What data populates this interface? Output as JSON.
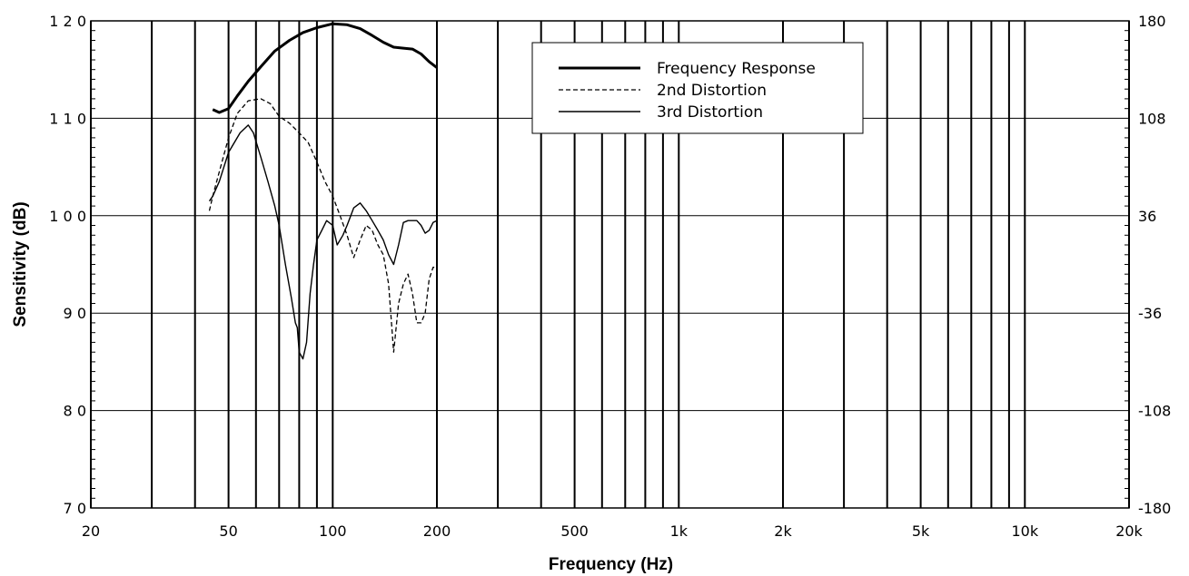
{
  "chart_data": {
    "type": "line",
    "title": "",
    "xlabel": "Frequency (Hz)",
    "ylabel": "Sensitivity (dB)",
    "x_scale": "log",
    "xlim": [
      20,
      20000
    ],
    "ylim": [
      70,
      120
    ],
    "y2lim": [
      -180,
      180
    ],
    "grid": true,
    "legend_position": "top-center",
    "x_tick_labels": [
      {
        "value": 20,
        "label": "20"
      },
      {
        "value": 50,
        "label": "50"
      },
      {
        "value": 100,
        "label": "100"
      },
      {
        "value": 200,
        "label": "200"
      },
      {
        "value": 500,
        "label": "500"
      },
      {
        "value": 1000,
        "label": "1k"
      },
      {
        "value": 2000,
        "label": "2k"
      },
      {
        "value": 5000,
        "label": "5k"
      },
      {
        "value": 10000,
        "label": "10k"
      },
      {
        "value": 20000,
        "label": "20k"
      }
    ],
    "x_grid_values": [
      20,
      30,
      40,
      50,
      60,
      70,
      80,
      90,
      100,
      200,
      300,
      400,
      500,
      600,
      700,
      800,
      900,
      1000,
      2000,
      3000,
      4000,
      5000,
      6000,
      7000,
      8000,
      9000,
      10000,
      20000
    ],
    "y_tick_labels": [
      {
        "value": 70,
        "label": "7 0"
      },
      {
        "value": 80,
        "label": "8 0"
      },
      {
        "value": 90,
        "label": "9 0"
      },
      {
        "value": 100,
        "label": "1 0 0"
      },
      {
        "value": 110,
        "label": "1 1 0"
      },
      {
        "value": 120,
        "label": "1 2 0"
      }
    ],
    "y2_tick_labels": [
      {
        "value": -180,
        "label": "-180"
      },
      {
        "value": -108,
        "label": "-108"
      },
      {
        "value": -36,
        "label": "-36"
      },
      {
        "value": 36,
        "label": "36"
      },
      {
        "value": 108,
        "label": "108"
      },
      {
        "value": 180,
        "label": "180"
      }
    ],
    "series": [
      {
        "name": "Frequency Response",
        "style": "thick-solid",
        "color": "#000000",
        "x": [
          45,
          47,
          50,
          53,
          57,
          62,
          68,
          75,
          82,
          90,
          100,
          110,
          120,
          130,
          140,
          150,
          160,
          170,
          180,
          190,
          200
        ],
        "y": [
          110.9,
          110.6,
          111.0,
          112.3,
          113.8,
          115.3,
          116.9,
          118.0,
          118.8,
          119.3,
          119.7,
          119.6,
          119.2,
          118.5,
          117.8,
          117.3,
          117.2,
          117.1,
          116.6,
          115.8,
          115.2
        ]
      },
      {
        "name": "2nd Distortion",
        "style": "dashed",
        "color": "#000000",
        "x": [
          44,
          45,
          47,
          50,
          53,
          57,
          62,
          66,
          70,
          75,
          80,
          85,
          90,
          95,
          100,
          105,
          110,
          115,
          120,
          125,
          130,
          135,
          140,
          145,
          150,
          155,
          160,
          165,
          170,
          175,
          180,
          185,
          190,
          195,
          200
        ],
        "y": [
          100.5,
          102.0,
          104.5,
          108.0,
          110.5,
          111.8,
          112.0,
          111.5,
          110.2,
          109.5,
          108.5,
          107.5,
          105.5,
          103.5,
          102.0,
          100.0,
          98.0,
          95.7,
          97.5,
          99.0,
          98.5,
          97.0,
          96.0,
          93.0,
          86.0,
          91.0,
          93.0,
          94.0,
          92.0,
          89.0,
          89.0,
          90.0,
          93.5,
          94.7,
          94.7
        ]
      },
      {
        "name": "3rd Distortion",
        "style": "thin-solid",
        "color": "#000000",
        "x": [
          44,
          45,
          47,
          50,
          54,
          57,
          59,
          62,
          65,
          68,
          70,
          73,
          76,
          78,
          79,
          80,
          82,
          84,
          86,
          88,
          90,
          93,
          96,
          100,
          103,
          107,
          110,
          115,
          120,
          125,
          130,
          135,
          140,
          145,
          150,
          155,
          160,
          165,
          170,
          175,
          180,
          185,
          190,
          195,
          200
        ],
        "y": [
          101.5,
          102.0,
          103.5,
          106.5,
          108.5,
          109.3,
          108.5,
          106.0,
          103.5,
          101.0,
          99.0,
          95.0,
          91.5,
          89.0,
          88.5,
          86.0,
          85.3,
          87.0,
          92.0,
          95.0,
          97.5,
          98.5,
          99.5,
          99.0,
          97.0,
          98.0,
          99.0,
          100.8,
          101.3,
          100.5,
          99.5,
          98.5,
          97.5,
          96.0,
          95.0,
          97.0,
          99.3,
          99.5,
          99.5,
          99.5,
          99.0,
          98.2,
          98.5,
          99.3,
          99.5
        ]
      }
    ]
  }
}
